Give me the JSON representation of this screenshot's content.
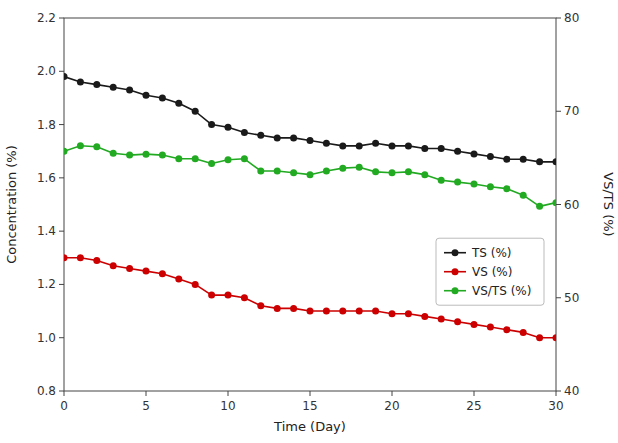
{
  "chart_data": {
    "type": "line",
    "xlabel": "Time (Day)",
    "ylabel": "Concentration (%)",
    "y2label": "VS/TS (%)",
    "x": [
      0,
      1,
      2,
      3,
      4,
      5,
      6,
      7,
      8,
      9,
      10,
      11,
      12,
      13,
      14,
      15,
      16,
      17,
      18,
      19,
      20,
      21,
      22,
      23,
      24,
      25,
      26,
      27,
      28,
      29,
      30
    ],
    "xlim": [
      0,
      30
    ],
    "xticks": [
      0,
      5,
      10,
      15,
      20,
      25,
      30
    ],
    "ylim": [
      0.8,
      2.2
    ],
    "yticks": [
      0.8,
      {
        "value": 1.0,
        "label": "1.0"
      },
      1.2,
      1.4,
      1.6,
      1.8,
      {
        "value": 2.0,
        "label": "2.0"
      },
      2.2
    ],
    "y2lim": [
      40,
      80
    ],
    "y2ticks": [
      40,
      50,
      60,
      70,
      80
    ],
    "grid": false,
    "legend": "right",
    "series": [
      {
        "name": "TS (%)",
        "color": "#1a1a1a",
        "marker": "circle",
        "values": [
          1.98,
          1.96,
          1.95,
          1.94,
          1.93,
          1.91,
          1.9,
          1.88,
          1.85,
          1.8,
          1.79,
          1.77,
          1.76,
          1.75,
          1.75,
          1.74,
          1.73,
          1.72,
          1.72,
          1.73,
          1.72,
          1.72,
          1.71,
          1.71,
          1.7,
          1.69,
          1.68,
          1.67,
          1.67,
          1.66,
          1.66
        ]
      },
      {
        "name": "VS (%)",
        "color": "#cc0000",
        "marker": "circle",
        "values": [
          1.3,
          1.3,
          1.29,
          1.27,
          1.26,
          1.25,
          1.24,
          1.22,
          1.2,
          1.16,
          1.16,
          1.15,
          1.12,
          1.11,
          1.11,
          1.1,
          1.1,
          1.1,
          1.1,
          1.1,
          1.09,
          1.09,
          1.08,
          1.07,
          1.06,
          1.05,
          1.04,
          1.03,
          1.02,
          1.0,
          1.0
        ]
      },
      {
        "name": "VS/TS (%)",
        "color": "#22aa22",
        "marker": "circle",
        "axis": "y2",
        "values": [
          65.7,
          66.3,
          66.2,
          65.5,
          65.3,
          65.4,
          65.3,
          64.9,
          64.9,
          64.4,
          64.8,
          64.9,
          63.6,
          63.6,
          63.4,
          63.2,
          63.6,
          63.9,
          64.0,
          63.5,
          63.4,
          63.5,
          63.2,
          62.6,
          62.4,
          62.2,
          61.9,
          61.7,
          61.0,
          59.8,
          60.2
        ]
      }
    ]
  }
}
